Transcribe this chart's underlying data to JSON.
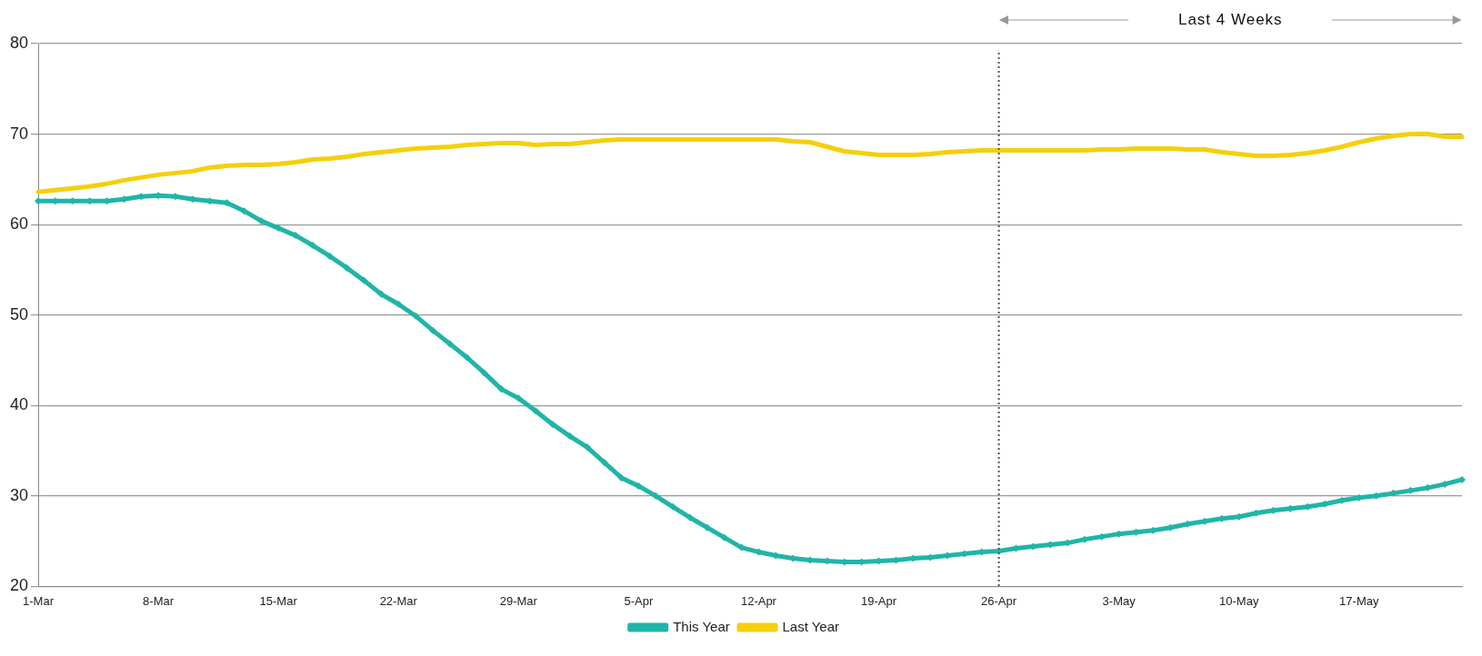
{
  "chart_data": {
    "type": "line",
    "categories": [
      "1-Mar",
      null,
      null,
      null,
      null,
      null,
      null,
      "8-Mar",
      null,
      null,
      null,
      null,
      null,
      null,
      "15-Mar",
      null,
      null,
      null,
      null,
      null,
      null,
      "22-Mar",
      null,
      null,
      null,
      null,
      null,
      null,
      "29-Mar",
      null,
      null,
      null,
      null,
      null,
      null,
      "5-Apr",
      null,
      null,
      null,
      null,
      null,
      null,
      "12-Apr",
      null,
      null,
      null,
      null,
      null,
      null,
      "19-Apr",
      null,
      null,
      null,
      null,
      null,
      null,
      "26-Apr",
      null,
      null,
      null,
      null,
      null,
      null,
      "3-May",
      null,
      null,
      null,
      null,
      null,
      null,
      "10-May",
      null,
      null,
      null,
      null,
      null,
      null,
      "17-May",
      null,
      null,
      null,
      null,
      null,
      null
    ],
    "series": [
      {
        "name": "This Year",
        "color": "#1fb5a8",
        "marker": "diamond",
        "values": [
          62.6,
          62.6,
          62.6,
          62.6,
          62.6,
          62.8,
          63.1,
          63.2,
          63.1,
          62.8,
          62.6,
          62.4,
          61.5,
          60.4,
          59.6,
          58.8,
          57.7,
          56.5,
          55.2,
          53.8,
          52.3,
          51.2,
          49.9,
          48.3,
          46.8,
          45.3,
          43.6,
          41.8,
          40.8,
          39.4,
          37.9,
          36.6,
          35.4,
          33.7,
          32.0,
          31.1,
          30.0,
          28.8,
          27.6,
          26.5,
          25.4,
          24.3,
          23.8,
          23.4,
          23.1,
          22.9,
          22.8,
          22.7,
          22.7,
          22.8,
          22.9,
          23.1,
          23.2,
          23.4,
          23.6,
          23.8,
          23.9,
          24.2,
          24.4,
          24.6,
          24.8,
          25.2,
          25.5,
          25.8,
          26.0,
          26.2,
          26.5,
          26.9,
          27.2,
          27.5,
          27.7,
          28.1,
          28.4,
          28.6,
          28.8,
          29.1,
          29.5,
          29.8,
          30.0,
          30.3,
          30.6,
          30.9,
          31.3,
          31.8
        ]
      },
      {
        "name": "Last Year",
        "color": "#f5cf0a",
        "marker": "none",
        "values": [
          63.6,
          63.8,
          64.0,
          64.2,
          64.5,
          64.9,
          65.2,
          65.5,
          65.7,
          65.9,
          66.3,
          66.5,
          66.6,
          66.6,
          66.7,
          66.9,
          67.2,
          67.3,
          67.5,
          67.8,
          68.0,
          68.2,
          68.4,
          68.5,
          68.6,
          68.8,
          68.9,
          69.0,
          69.0,
          68.8,
          68.9,
          68.9,
          69.1,
          69.3,
          69.4,
          69.4,
          69.4,
          69.4,
          69.4,
          69.4,
          69.4,
          69.4,
          69.4,
          69.4,
          69.2,
          69.1,
          68.6,
          68.1,
          67.9,
          67.7,
          67.7,
          67.7,
          67.8,
          68.0,
          68.1,
          68.2,
          68.2,
          68.2,
          68.2,
          68.2,
          68.2,
          68.2,
          68.3,
          68.3,
          68.4,
          68.4,
          68.4,
          68.3,
          68.3,
          68.0,
          67.8,
          67.6,
          67.6,
          67.7,
          67.9,
          68.2,
          68.6,
          69.1,
          69.5,
          69.8,
          70.0,
          70.0,
          69.7,
          69.7
        ]
      }
    ],
    "ylim": [
      20,
      80
    ],
    "yticks": [
      20,
      30,
      40,
      50,
      60,
      70,
      80
    ],
    "grid": "y",
    "legend": "bottom",
    "line_style": "solid",
    "ref_lines": [
      {
        "axis": "x",
        "value": "26-Apr",
        "color": "#555555",
        "line_style": "dotted"
      }
    ],
    "annotations": [
      "Last 4 Weeks"
    ]
  }
}
